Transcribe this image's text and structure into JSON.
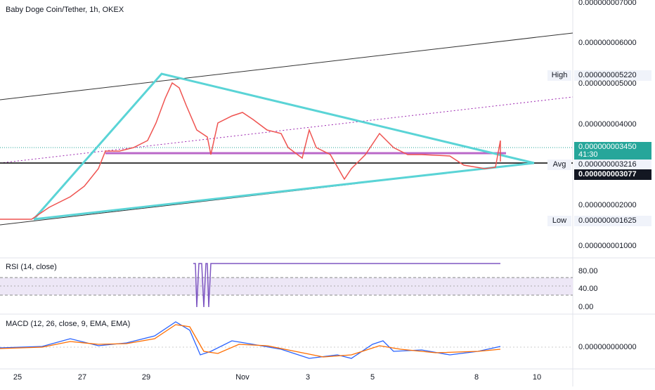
{
  "header": {
    "title": "Baby Doge Coin/Tether, 1h, OKEX"
  },
  "price_axis": {
    "ticks": [
      "0.000000007000",
      "0.000000006000",
      "0.000000005000",
      "0.000000004000",
      "0.000000002000",
      "0.000000001000"
    ],
    "high": {
      "label": "High",
      "value": "0.000000005220"
    },
    "last": {
      "value": "0.000000003450",
      "countdown": "41:30"
    },
    "avg": {
      "label": "Avg",
      "value": "0.000000003216"
    },
    "cursor": {
      "value": "0.000000003077"
    },
    "low": {
      "label": "Low",
      "value": "0.000000001625"
    }
  },
  "rsi": {
    "title": "RSI (14, close)",
    "ticks": [
      "80.00",
      "40.00",
      "0.00"
    ]
  },
  "macd": {
    "title": "MACD (12, 26, close, 9, EMA, EMA)",
    "ticks": [
      "0.000000000000"
    ]
  },
  "time_axis": {
    "labels": [
      "25",
      "27",
      "29",
      "Nov",
      "3",
      "5",
      "8",
      "10"
    ]
  }
}
